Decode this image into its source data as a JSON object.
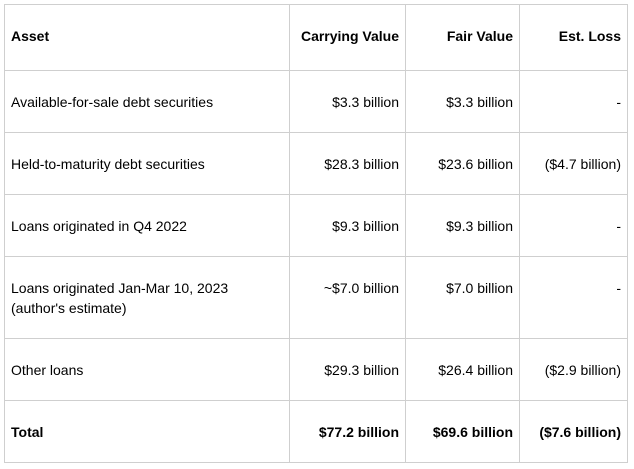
{
  "table": {
    "header": [
      "Asset",
      "Carrying Value",
      "Fair Value",
      "Est. Loss"
    ],
    "rows": [
      [
        "Available-for-sale debt securities",
        "$3.3 billion",
        "$3.3 billion",
        "-"
      ],
      [
        "Held-to-maturity debt securities",
        "$28.3 billion",
        "$23.6 billion",
        "($4.7 billion)"
      ],
      [
        "Loans originated in Q4 2022",
        "$9.3 billion",
        "$9.3 billion",
        "-"
      ],
      [
        "Loans originated Jan-Mar 10, 2023\n(author's estimate)",
        "~$7.0 billion",
        "$7.0 billion",
        "-"
      ],
      [
        "Other loans",
        "$29.3 billion",
        "$26.4 billion",
        "($2.9 billion)"
      ]
    ],
    "total": [
      "Total",
      "$77.2 billion",
      "$69.6 billion",
      "($7.6 billion)"
    ]
  }
}
